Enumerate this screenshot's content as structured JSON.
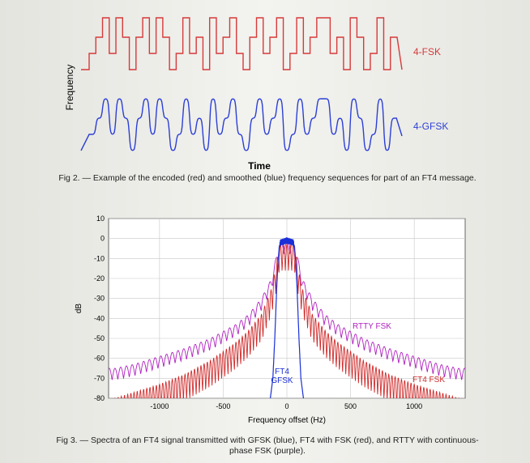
{
  "figure2": {
    "ylabel": "Frequency",
    "xlabel": "Time",
    "label_fsk": "4-FSK",
    "label_gfsk": "4-GFSK",
    "color_fsk": "#d63a3a",
    "color_gfsk": "#2b3fd6",
    "caption": "Fig 2. — Example of the encoded (red) and smoothed (blue) frequency sequences for part of an FT4 message."
  },
  "figure3": {
    "caption": "Fig 3. — Spectra of an FT4 signal transmitted with GFSK (blue), FT4 with FSK (red), and RTTY with continuous-phase FSK (purple).",
    "chart_data": {
      "type": "line",
      "xlabel": "Frequency offset (Hz)",
      "ylabel": "dB",
      "xlim": [
        -1400,
        1400
      ],
      "ylim": [
        -80,
        10
      ],
      "xticks": [
        -1000,
        -500,
        0,
        500,
        1000
      ],
      "yticks": [
        10,
        0,
        -10,
        -20,
        -30,
        -40,
        -50,
        -60,
        -70,
        -80
      ],
      "grid": true,
      "series": [
        {
          "name": "RTTY FSK",
          "color": "#b020c0",
          "x": [
            -1350,
            -1200,
            -1000,
            -800,
            -600,
            -400,
            -300,
            -200,
            -120,
            -80,
            -60,
            60,
            80,
            120,
            200,
            300,
            400,
            600,
            800,
            1000,
            1200,
            1350
          ],
          "y": [
            -65,
            -63,
            -59,
            -55,
            -50,
            -43,
            -38,
            -30,
            -20,
            -8,
            -2,
            -2,
            -8,
            -20,
            -30,
            -38,
            -43,
            -50,
            -55,
            -59,
            -63,
            -65
          ]
        },
        {
          "name": "FT4 FSK",
          "color": "#d02a2a",
          "x": [
            -1350,
            -1200,
            -1000,
            -800,
            -600,
            -400,
            -300,
            -200,
            -120,
            -80,
            -60,
            60,
            80,
            120,
            200,
            300,
            400,
            600,
            800,
            1000,
            1200,
            1350
          ],
          "y": [
            -80,
            -77,
            -73,
            -68,
            -61,
            -52,
            -46,
            -38,
            -25,
            -12,
            -3,
            -3,
            -12,
            -25,
            -38,
            -46,
            -52,
            -61,
            -68,
            -73,
            -77,
            -80
          ]
        },
        {
          "name": "FT4 GFSK",
          "color": "#1a2fd8",
          "x": [
            -130,
            -110,
            -95,
            -80,
            -70,
            -60,
            -50,
            0,
            50,
            60,
            70,
            80,
            95,
            110,
            130
          ],
          "y": [
            -80,
            -70,
            -50,
            -25,
            -12,
            -4,
            -2,
            -1,
            -2,
            -4,
            -12,
            -25,
            -50,
            -70,
            -80
          ]
        }
      ],
      "annotations": [
        "RTTY FSK",
        "FT4 FSK",
        "FT4",
        "GFSK"
      ]
    }
  }
}
